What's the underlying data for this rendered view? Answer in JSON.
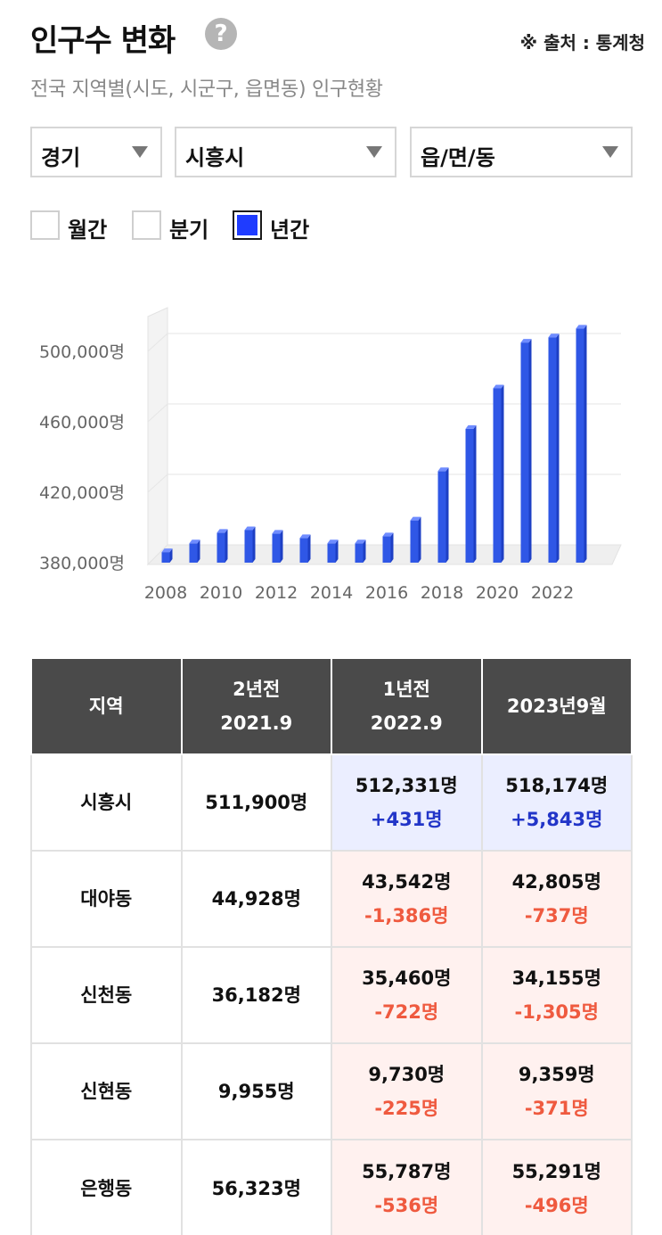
{
  "header": {
    "title": "인구수 변화",
    "help_icon": "?",
    "source": "※ 출처 : 통계청"
  },
  "subtitle": "전국 지역별(시도, 시군구, 읍면동) 인구현황",
  "filters": {
    "province": "경기",
    "city": "시흥시",
    "dong": "읍/면/동"
  },
  "period": {
    "monthly": "월간",
    "quarterly": "분기",
    "yearly": "년간",
    "selected": "년간"
  },
  "colors": {
    "bar": "#2f57e6",
    "accent": "#1f3cff",
    "plus": "#2235c8",
    "minus": "#ef5a3f",
    "header_bg": "#4a4a4a"
  },
  "chart_data": {
    "type": "bar",
    "categories": [
      "2008",
      "2009",
      "2010",
      "2011",
      "2012",
      "2013",
      "2014",
      "2015",
      "2016",
      "2017",
      "2018",
      "2019",
      "2020",
      "2021",
      "2022",
      "2023"
    ],
    "values": [
      386000,
      391000,
      397000,
      398500,
      396500,
      394000,
      391000,
      391000,
      395000,
      404000,
      432000,
      456000,
      479000,
      505000,
      508000,
      513000
    ],
    "x_tick_labels": [
      "2008",
      "2010",
      "2012",
      "2014",
      "2016",
      "2018",
      "2020",
      "2022"
    ],
    "y_tick_labels": [
      "380,000명",
      "420,000명",
      "460,000명",
      "500,000명"
    ],
    "y_ticks": [
      380000,
      420000,
      460000,
      500000
    ],
    "ylim": [
      380000,
      520000
    ],
    "grid": true
  },
  "table": {
    "headers": [
      {
        "line1": "지역",
        "line2": ""
      },
      {
        "line1": "2년전",
        "line2": "2021.9"
      },
      {
        "line1": "1년전",
        "line2": "2022.9"
      },
      {
        "line1": "2023년9월",
        "line2": ""
      }
    ],
    "rows": [
      {
        "region": "시흥시",
        "y2": "511,900명",
        "y1": "512,331명",
        "y1_change": "+431명",
        "now": "518,174명",
        "now_change": "+5,843명",
        "trend": "up"
      },
      {
        "region": "대야동",
        "y2": "44,928명",
        "y1": "43,542명",
        "y1_change": "-1,386명",
        "now": "42,805명",
        "now_change": "-737명",
        "trend": "down"
      },
      {
        "region": "신천동",
        "y2": "36,182명",
        "y1": "35,460명",
        "y1_change": "-722명",
        "now": "34,155명",
        "now_change": "-1,305명",
        "trend": "down"
      },
      {
        "region": "신현동",
        "y2": "9,955명",
        "y1": "9,730명",
        "y1_change": "-225명",
        "now": "9,359명",
        "now_change": "-371명",
        "trend": "down"
      },
      {
        "region": "은행동",
        "y2": "56,323명",
        "y1": "55,787명",
        "y1_change": "-536명",
        "now": "55,291명",
        "now_change": "-496명",
        "trend": "down"
      }
    ]
  }
}
